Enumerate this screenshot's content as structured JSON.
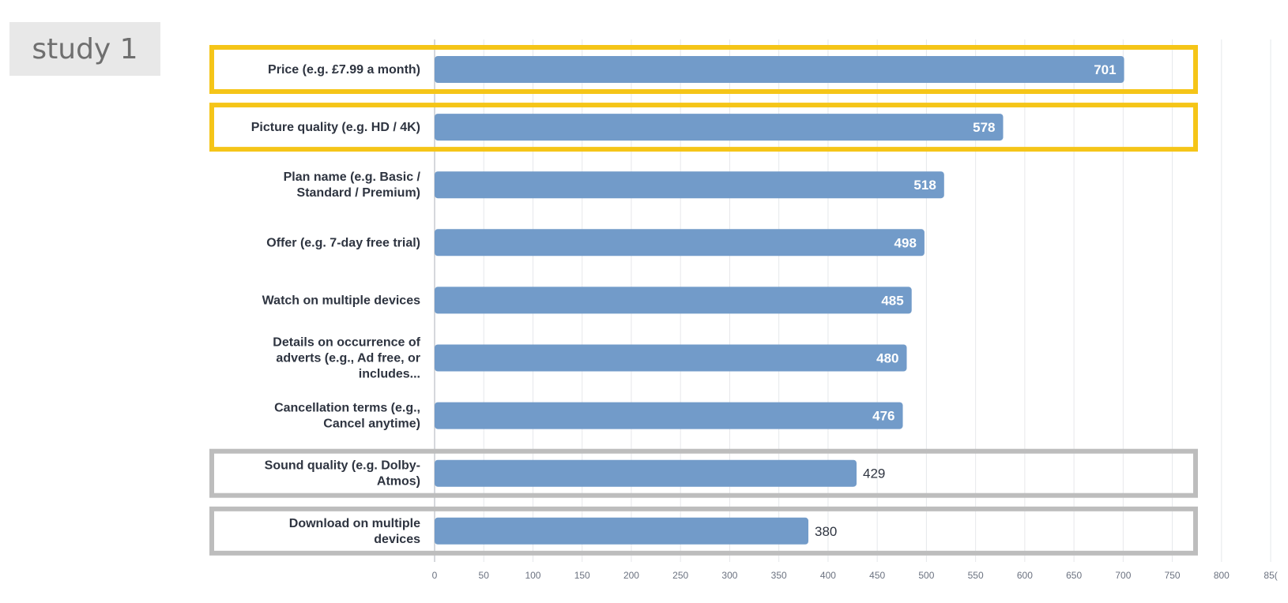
{
  "tag": {
    "label": "study 1"
  },
  "chart_data": {
    "type": "bar",
    "orientation": "horizontal",
    "categories": [
      "Price (e.g. £7.99 a month)",
      "Picture quality (e.g. HD / 4K)",
      "Plan name (e.g. Basic / Standard / Premium)",
      "Offer (e.g. 7-day free trial)",
      "Watch on multiple devices",
      "Details on occurrence of adverts (e.g., Ad free, or includes...",
      "Cancellation terms (e.g., Cancel anytime)",
      "Sound quality (e.g. Dolby-Atmos)",
      "Download on multiple devices"
    ],
    "category_lines": [
      [
        "Price (e.g. £7.99 a month)"
      ],
      [
        "Picture quality (e.g. HD / 4K)"
      ],
      [
        "Plan name (e.g. Basic /",
        "Standard / Premium)"
      ],
      [
        "Offer (e.g. 7-day free trial)"
      ],
      [
        "Watch on multiple devices"
      ],
      [
        "Details on occurrence of",
        "adverts (e.g., Ad free, or",
        "includes..."
      ],
      [
        "Cancellation terms (e.g.,",
        "Cancel anytime)"
      ],
      [
        "Sound quality (e.g. Dolby-",
        "Atmos)"
      ],
      [
        "Download on multiple",
        "devices"
      ]
    ],
    "values": [
      701,
      578,
      518,
      498,
      485,
      480,
      476,
      429,
      380
    ],
    "xlim": [
      0,
      850
    ],
    "xticks": [
      0,
      50,
      100,
      150,
      200,
      250,
      300,
      350,
      400,
      450,
      500,
      550,
      600,
      650,
      700,
      750,
      800,
      "85("
    ],
    "grid": true,
    "bar_color": "#729bc9",
    "highlights": [
      {
        "rows": [
          0
        ],
        "color": "#f5c518"
      },
      {
        "rows": [
          1
        ],
        "color": "#f5c518"
      },
      {
        "rows": [
          7
        ],
        "color": "#bdbdbd"
      },
      {
        "rows": [
          8
        ],
        "color": "#bdbdbd"
      }
    ],
    "title": "",
    "xlabel": "",
    "ylabel": ""
  }
}
